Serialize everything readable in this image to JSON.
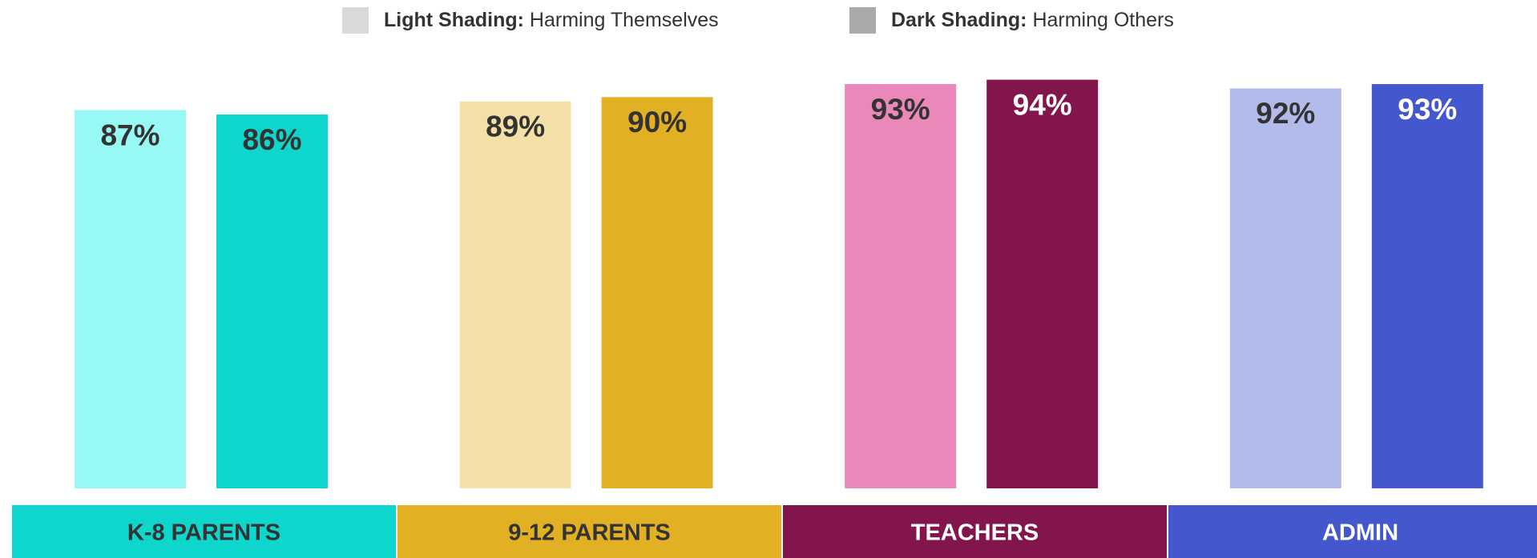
{
  "chart_data": {
    "type": "bar",
    "categories": [
      "K-8 PARENTS",
      "9-12 PARENTS",
      "TEACHERS",
      "ADMIN"
    ],
    "category_colors": [
      "#0ed6cc",
      "#e1b123",
      "#82164c",
      "#4557cd"
    ],
    "category_text_colors": [
      "#333333",
      "#333333",
      "#ffffff",
      "#ffffff"
    ],
    "ylim": [
      0,
      100
    ],
    "series": [
      {
        "name": "Harming Themselves",
        "legend_prefix": "Light Shading:",
        "legend_color": "#d9d9d9",
        "colors": [
          "#98f8f3",
          "#f3e0a6",
          "#ea89b9",
          "#b3bbeb"
        ],
        "label_colors": [
          "#333333",
          "#333333",
          "#333333",
          "#333333"
        ],
        "values": [
          87,
          89,
          93,
          92
        ],
        "value_labels": [
          "87%",
          "89%",
          "93%",
          "92%"
        ]
      },
      {
        "name": "Harming Others",
        "legend_prefix": "Dark Shading:",
        "legend_color": "#aaaaaa",
        "colors": [
          "#0ed6cc",
          "#e1b123",
          "#82164c",
          "#4557cd"
        ],
        "label_colors": [
          "#333333",
          "#333333",
          "#ffffff",
          "#ffffff"
        ],
        "values": [
          86,
          90,
          94,
          93
        ],
        "value_labels": [
          "86%",
          "90%",
          "94%",
          "93%"
        ]
      }
    ]
  }
}
